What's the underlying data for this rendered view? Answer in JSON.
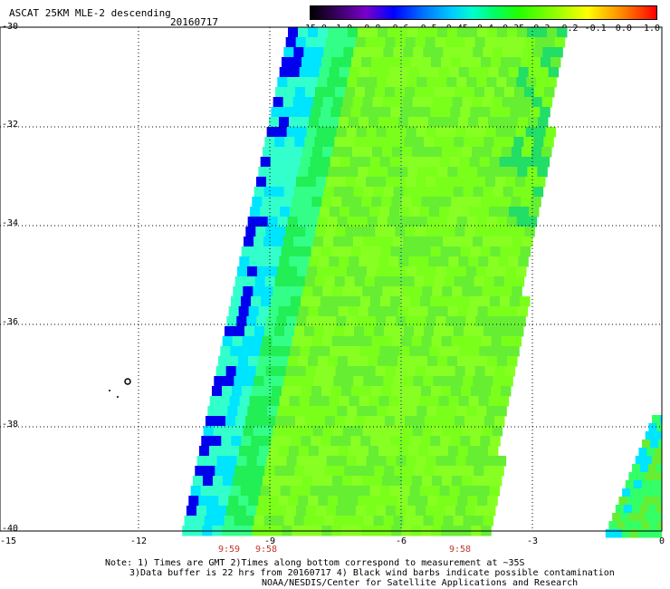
{
  "header": {
    "title": "ASCAT 25KM MLE-2 descending",
    "date": "20160717"
  },
  "colorbar": {
    "labels": [
      "-15.0",
      "-1.0",
      "-0.8",
      "-0.6",
      "-0.5",
      "-0.45",
      "-0.4",
      "-0.35",
      "-0.3",
      "-0.2",
      "-0.1",
      "0.0",
      "1.0"
    ],
    "colors": [
      "#000000",
      "#3a0066",
      "#7a00cc",
      "#0000ff",
      "#0077ff",
      "#00ccff",
      "#00ffcc",
      "#00ff66",
      "#22ff00",
      "#88ff00",
      "#ffff00",
      "#ff8800",
      "#ff0000"
    ]
  },
  "map": {
    "lat_labels": [
      "-30",
      "-32",
      "-34",
      "-36",
      "-38",
      "-40"
    ],
    "lon_labels": [
      "-15",
      "-12",
      "-9",
      "-6",
      "-3",
      "0"
    ],
    "time_labels": [
      "9:59",
      "9:58",
      "9:58"
    ]
  },
  "notes": {
    "line1": "Note: 1) Times are GMT 2)Times along bottom correspond to measurement at ~35S",
    "line2": "3)Data buffer is 22 hrs from 20160717 4) Black wind barbs indicate possible contamination",
    "line3": "NOAA/NESDIS/Center for Satellite Applications and Research"
  }
}
